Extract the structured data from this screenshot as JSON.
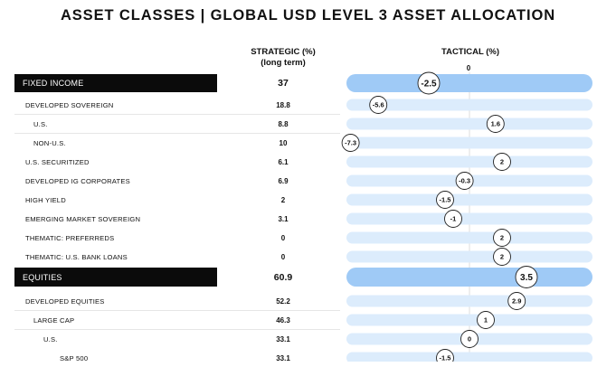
{
  "title": "ASSET CLASSES | GLOBAL USD LEVEL 3 ASSET ALLOCATION",
  "headers": {
    "strategic": "STRATEGIC (%)",
    "strategic_sub": "(long term)",
    "tactical": "TACTICAL (%)",
    "zero": "0"
  },
  "chart_data": {
    "type": "table",
    "title": "ASSET CLASSES | GLOBAL USD LEVEL 3 ASSET ALLOCATION",
    "columns": [
      "STRATEGIC (%) (long term)",
      "TACTICAL (%)"
    ],
    "tactical_zero_label": "0",
    "colors": {
      "category_bar": "#9fcaf6",
      "row_bar": "#dcecfc",
      "category_label_bg": "#0b0b0b"
    },
    "rows": [
      {
        "label": "FIXED INCOME",
        "level": "category",
        "strategic": "37",
        "tactical": -2.5,
        "tactical_label": "-2.5"
      },
      {
        "label": "DEVELOPED SOVEREIGN",
        "level": 0,
        "strategic": "18.8",
        "tactical": -5.6,
        "tactical_label": "-5.6"
      },
      {
        "label": "U.S.",
        "level": 1,
        "strategic": "8.8",
        "tactical": 1.6,
        "tactical_label": "1.6"
      },
      {
        "label": "NON-U.S.",
        "level": 1,
        "strategic": "10",
        "tactical": -7.3,
        "tactical_label": "-7.3"
      },
      {
        "label": "U.S. SECURITIZED",
        "level": 0,
        "strategic": "6.1",
        "tactical": 2,
        "tactical_label": "2"
      },
      {
        "label": "DEVELOPED IG CORPORATES",
        "level": 0,
        "strategic": "6.9",
        "tactical": -0.3,
        "tactical_label": "-0.3"
      },
      {
        "label": "HIGH  YIELD",
        "level": 0,
        "strategic": "2",
        "tactical": -1.5,
        "tactical_label": "-1.5"
      },
      {
        "label": "EMERGING MARKET SOVEREIGN",
        "level": 0,
        "strategic": "3.1",
        "tactical": -1,
        "tactical_label": "-1"
      },
      {
        "label": "THEMATIC: PREFERREDS",
        "level": 0,
        "strategic": "0",
        "tactical": 2,
        "tactical_label": "2"
      },
      {
        "label": "THEMATIC: U.S. BANK LOANS",
        "level": 0,
        "strategic": "0",
        "tactical": 2,
        "tactical_label": "2"
      },
      {
        "label": "EQUITIES",
        "level": "category",
        "strategic": "60.9",
        "tactical": 3.5,
        "tactical_label": "3.5"
      },
      {
        "label": "DEVELOPED EQUITIES",
        "level": 0,
        "strategic": "52.2",
        "tactical": 2.9,
        "tactical_label": "2.9"
      },
      {
        "label": "LARGE  CAP",
        "level": 1,
        "strategic": "46.3",
        "tactical": 1,
        "tactical_label": "1"
      },
      {
        "label": "U.S.",
        "level": 2,
        "strategic": "33.1",
        "tactical": 0,
        "tactical_label": "0"
      },
      {
        "label": "S&P 500",
        "level": 3,
        "strategic": "33.1",
        "tactical": -1.5,
        "tactical_label": "-1.5"
      }
    ]
  }
}
